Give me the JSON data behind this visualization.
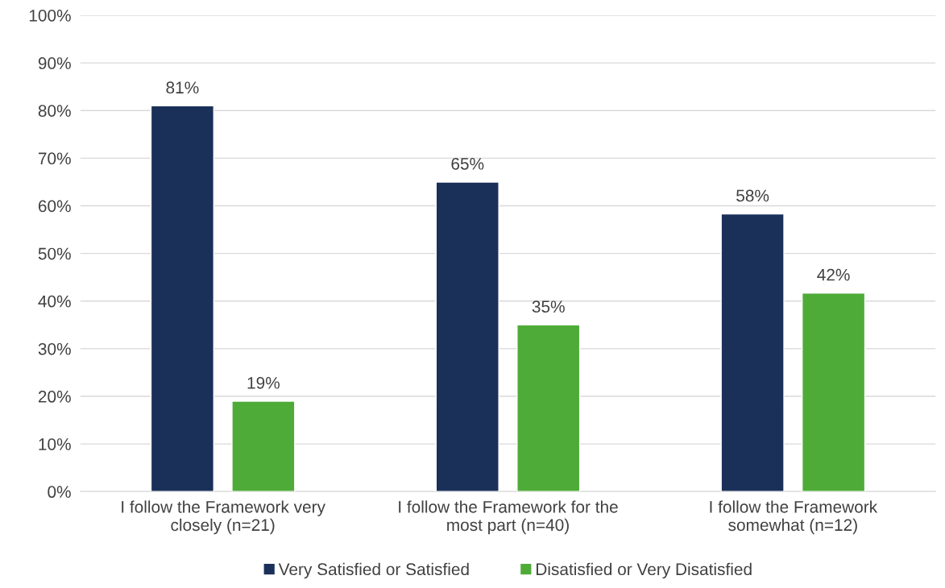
{
  "chart_data": {
    "type": "bar",
    "categories": [
      "I follow the Framework very\nclosely (n=21)",
      "I follow the Framework for the\nmost part (n=40)",
      "I follow the Framework\nsomewhat (n=12)"
    ],
    "series": [
      {
        "name": "Very Satisfied or Satisfied",
        "color": "#1a3059",
        "values": [
          81,
          65,
          58.3
        ],
        "value_labels": [
          "81%",
          "65%",
          "58%"
        ]
      },
      {
        "name": "Disatisfied or Very Disatisfied",
        "color": "#4fab38",
        "values": [
          19,
          35,
          41.7
        ],
        "value_labels": [
          "19%",
          "35%",
          "42%"
        ]
      }
    ],
    "ylim": [
      0,
      100
    ],
    "yticks": [
      {
        "value": 0,
        "label": "0%"
      },
      {
        "value": 10,
        "label": "10%"
      },
      {
        "value": 20,
        "label": "20%"
      },
      {
        "value": 30,
        "label": "30%"
      },
      {
        "value": 40,
        "label": "40%"
      },
      {
        "value": 50,
        "label": "50%"
      },
      {
        "value": 60,
        "label": "60%"
      },
      {
        "value": 70,
        "label": "70%"
      },
      {
        "value": 80,
        "label": "80%"
      },
      {
        "value": 90,
        "label": "90%"
      },
      {
        "value": 100,
        "label": "100%"
      }
    ],
    "grid": "y",
    "legend": "bottom"
  }
}
